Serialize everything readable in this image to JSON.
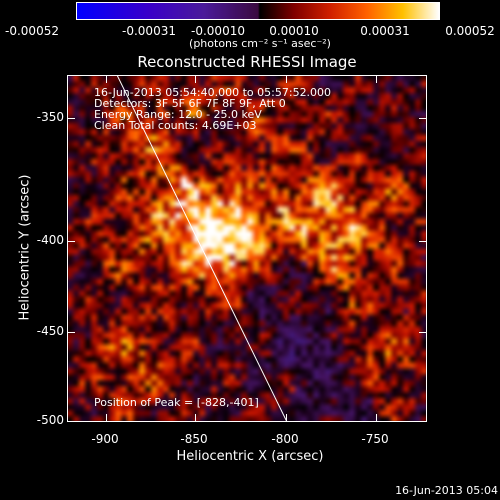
{
  "colorbar": {
    "tick_labels": [
      "-0.00052",
      "-0.00031",
      "-0.00010",
      "0.00010",
      "0.00031",
      "0.00052"
    ],
    "units": "(photons cm⁻² s⁻¹ asec⁻²)"
  },
  "title": "Reconstructed RHESSI Image",
  "info": {
    "line1": "16-Jun-2013 05:54:40.000 to 05:57:52.000",
    "line2": "Detectors: 3F 5F 6F 7F 8F 9F, Att 0",
    "line3": "Energy Range: 12.0 - 25.0 keV",
    "line4": "Clean     Total counts: 4.69E+03"
  },
  "peak_label": "Position of Peak = [-828,-401]",
  "x_axis": {
    "label": "Heliocentric X (arcsec)",
    "ticks": [
      "-900",
      "-850",
      "-800",
      "-750"
    ]
  },
  "y_axis": {
    "label": "Heliocentric Y (arcsec)",
    "ticks": [
      "-350",
      "-400",
      "-450",
      "-500"
    ]
  },
  "timestamp": "16-Jun-2013 05:04"
}
